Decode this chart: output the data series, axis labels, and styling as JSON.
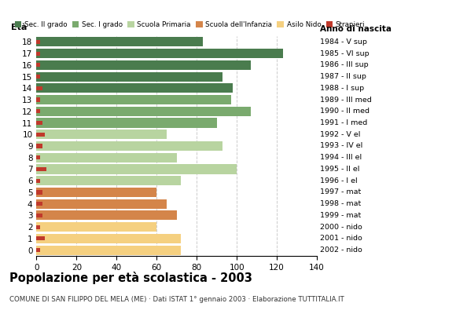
{
  "ages": [
    18,
    17,
    16,
    15,
    14,
    13,
    12,
    11,
    10,
    9,
    8,
    7,
    6,
    5,
    4,
    3,
    2,
    1,
    0
  ],
  "values": [
    83,
    123,
    107,
    93,
    98,
    97,
    107,
    90,
    65,
    93,
    70,
    100,
    72,
    60,
    65,
    70,
    60,
    72,
    72
  ],
  "stranieri": [
    2,
    2,
    2,
    2,
    3,
    2,
    2,
    3,
    4,
    3,
    2,
    5,
    2,
    3,
    3,
    3,
    2,
    4,
    2
  ],
  "bar_colors": [
    "#4a7c4e",
    "#4a7c4e",
    "#4a7c4e",
    "#4a7c4e",
    "#4a7c4e",
    "#7aaa6e",
    "#7aaa6e",
    "#7aaa6e",
    "#b8d4a0",
    "#b8d4a0",
    "#b8d4a0",
    "#b8d4a0",
    "#b8d4a0",
    "#d4854a",
    "#d4854a",
    "#d4854a",
    "#f5d080",
    "#f5d080",
    "#f5d080"
  ],
  "anno_labels": [
    "1984 - V sup",
    "1985 - VI sup",
    "1986 - III sup",
    "1987 - II sup",
    "1988 - I sup",
    "1989 - III med",
    "1990 - II med",
    "1991 - I med",
    "1992 - V el",
    "1993 - IV el",
    "1994 - III el",
    "1995 - II el",
    "1996 - I el",
    "1997 - mat",
    "1998 - mat",
    "1999 - mat",
    "2000 - nido",
    "2001 - nido",
    "2002 - nido"
  ],
  "legend_labels": [
    "Sec. II grado",
    "Sec. I grado",
    "Scuola Primaria",
    "Scuola dell'Infanzia",
    "Asilo Nido",
    "Stranieri"
  ],
  "legend_colors": [
    "#4a7c4e",
    "#7aaa6e",
    "#b8d4a0",
    "#d4854a",
    "#f5d080",
    "#c0392b"
  ],
  "stranieri_color": "#c0392b",
  "title": "Popolazione per età scolastica - 2003",
  "subtitle": "COMUNE DI SAN FILIPPO DEL MELA (ME) · Dati ISTAT 1° gennaio 2003 · Elaborazione TUTTITALIA.IT",
  "eta_label": "Età",
  "anno_label": "Anno di nascita",
  "xlim": [
    0,
    140
  ],
  "xticks": [
    0,
    20,
    40,
    60,
    80,
    100,
    120,
    140
  ],
  "background_color": "#ffffff",
  "grid_color": "#cccccc"
}
